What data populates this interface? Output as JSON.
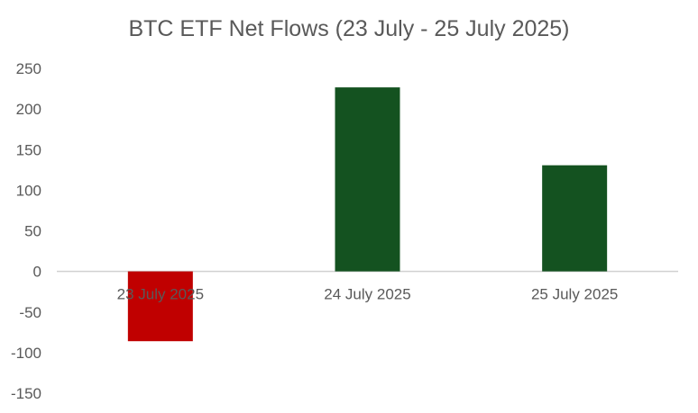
{
  "chart_data": {
    "type": "bar",
    "title": "BTC ETF Net Flows (23 July - 25 July 2025)",
    "categories": [
      "23 July 2025",
      "24 July 2025",
      "25 July 2025"
    ],
    "values": [
      -85.96,
      226.61,
      130.69
    ],
    "ylim": [
      -150,
      250
    ],
    "yticks": [
      250,
      200,
      150,
      100,
      50,
      0,
      -50,
      -100,
      -150
    ],
    "grid": false,
    "legend": "none",
    "colors": {
      "positive": "#145220",
      "negative": "#c00000"
    }
  }
}
